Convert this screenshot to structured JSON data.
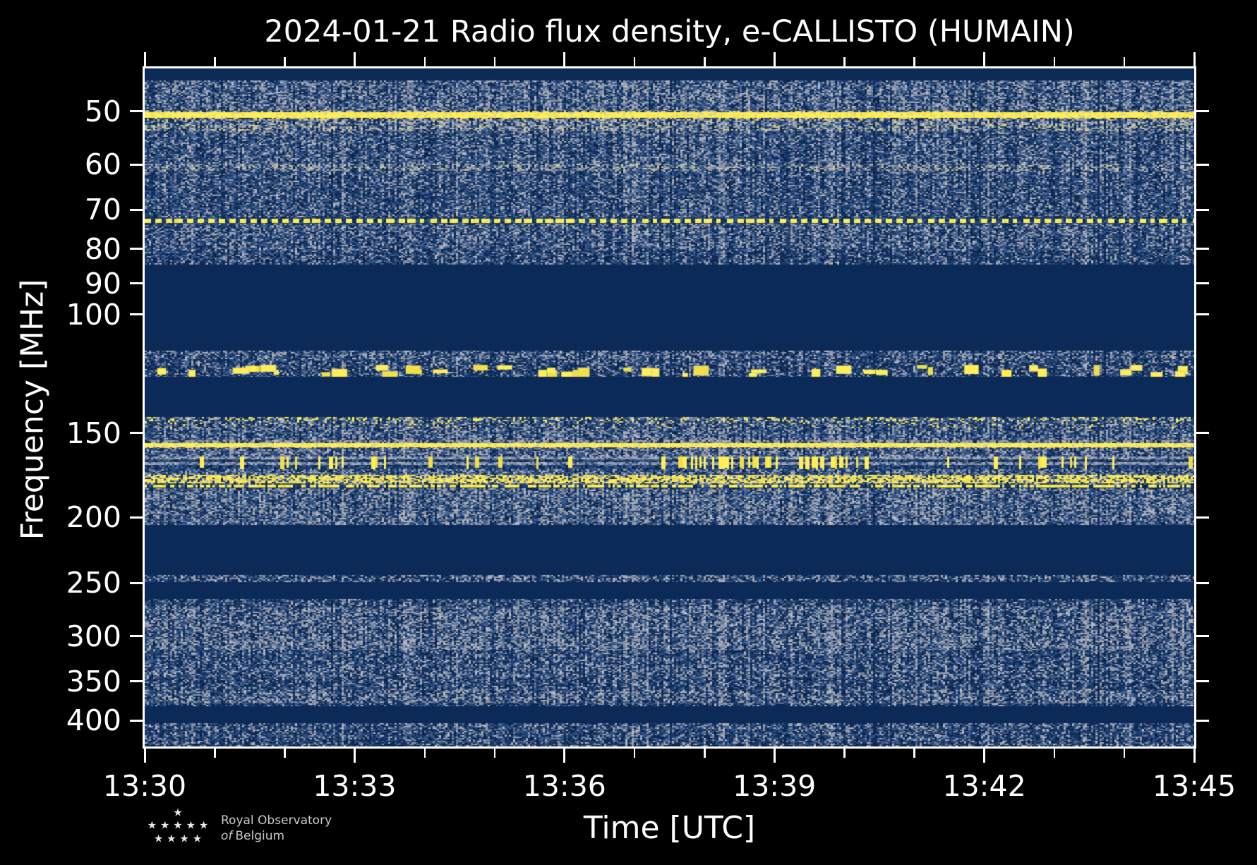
{
  "chart_data": {
    "type": "heatmap",
    "title": "2024-01-21 Radio flux density, e-CALLISTO (HUMAIN)",
    "xlabel": "Time [UTC]",
    "ylabel": "Frequency [MHz]",
    "x_range": [
      "13:30",
      "13:45"
    ],
    "x_major_ticks": [
      "13:30",
      "13:33",
      "13:36",
      "13:39",
      "13:42",
      "13:45"
    ],
    "x_minor_step_minutes": 1,
    "x_total_minutes": 15,
    "y_scale": "log",
    "y_axis_inverted_increasing_down": true,
    "freq_range_mhz": [
      43.2,
      437
    ],
    "y_tick_labels_mhz": [
      "50",
      "60",
      "70",
      "80",
      "90",
      "100",
      "150",
      "200",
      "250",
      "300",
      "350",
      "400"
    ],
    "grid": false,
    "legend": "none",
    "palette": {
      "figure_background": "#000000",
      "plot_background_navy": "#0c2a57",
      "frame": "#ffffff",
      "text": "#ffffff",
      "noise_blues": [
        "#23436e",
        "#2d4d7e",
        "#3a5a8c",
        "#47689a"
      ],
      "noise_darks": [
        "#0c2a57",
        "#123160",
        "#183968",
        "#0a2348"
      ],
      "noise_grays": [
        "#7d8498",
        "#8e94a4",
        "#9ca2b0",
        "#b4b8c3"
      ],
      "pale_yellow": "#d9cd8a",
      "yellow": "#f2df45",
      "bright_yellow": "#ffee55"
    },
    "bands": [
      {
        "f_lo": 45.0,
        "f_hi": 49.9,
        "kind": "noise",
        "density": 0.72,
        "gray": 0.45,
        "label": "broadband noise 45-50 MHz"
      },
      {
        "f_lo": 49.9,
        "f_hi": 51.4,
        "kind": "yellow_line",
        "label": "strong continuous RFI line ~50 MHz"
      },
      {
        "f_lo": 51.4,
        "f_hi": 53.5,
        "kind": "noise",
        "density": 0.78,
        "gray": 0.45,
        "pale": 0.15,
        "label": "bright fringe below 50 MHz line"
      },
      {
        "f_lo": 53.5,
        "f_hi": 59.8,
        "kind": "noise",
        "density": 0.66,
        "gray": 0.35,
        "label": "noise"
      },
      {
        "f_lo": 59.8,
        "f_hi": 61.2,
        "kind": "noise",
        "density": 0.78,
        "gray": 0.5,
        "pale": 0.1,
        "label": "enhanced row ~60 MHz"
      },
      {
        "f_lo": 61.2,
        "f_hi": 71.8,
        "kind": "noise",
        "density": 0.62,
        "gray": 0.33,
        "label": "noise"
      },
      {
        "f_lo": 71.8,
        "f_hi": 73.3,
        "kind": "dashed_line",
        "label": "dashed RFI line ~72.5 MHz"
      },
      {
        "f_lo": 73.3,
        "f_hi": 80.5,
        "kind": "noise",
        "density": 0.68,
        "gray": 0.4,
        "label": "noise"
      },
      {
        "f_lo": 80.5,
        "f_hi": 84.3,
        "kind": "noise",
        "density": 0.55,
        "gray": 0.32,
        "label": "noise fading into quiet zone 84-113 MHz"
      },
      {
        "f_lo": 113.2,
        "f_hi": 116.5,
        "kind": "noise",
        "density": 0.65,
        "gray": 0.45,
        "label": "noise"
      },
      {
        "f_lo": 116.5,
        "f_hi": 123.8,
        "kind": "blobs",
        "density": 0.5,
        "gray": 0.35,
        "label": "intermittent bright blobs ~117-124 MHz"
      },
      {
        "f_lo": 142.0,
        "f_hi": 147.5,
        "kind": "speckles",
        "density": 0.68,
        "gray": 0.4,
        "yellow_prob": 0.05,
        "label": "speckled noise ~142-148 MHz"
      },
      {
        "f_lo": 147.5,
        "f_hi": 153.6,
        "kind": "noise",
        "density": 0.72,
        "gray": 0.42,
        "label": "noise"
      },
      {
        "f_lo": 153.6,
        "f_hi": 155.2,
        "kind": "noise",
        "density": 0.82,
        "gray": 0.75,
        "label": "gray band above 156 MHz line"
      },
      {
        "f_lo": 155.2,
        "f_hi": 157.8,
        "kind": "yellow_line",
        "label": "strong continuous RFI line ~156 MHz"
      },
      {
        "f_lo": 157.8,
        "f_hi": 162.5,
        "kind": "noise",
        "density": 0.75,
        "gray": 0.45,
        "label": "noise"
      },
      {
        "f_lo": 162.5,
        "f_hi": 169.5,
        "kind": "bursts",
        "label": "vertical burst RFI ~163-170 MHz, clustered 13:38-13:41"
      },
      {
        "f_lo": 169.5,
        "f_hi": 172.8,
        "kind": "noise",
        "density": 0.7,
        "gray": 0.4,
        "label": "noise"
      },
      {
        "f_lo": 172.8,
        "f_hi": 177.8,
        "kind": "dense_yellow",
        "label": "dense bright RFI band ~173-178 MHz"
      },
      {
        "f_lo": 177.8,
        "f_hi": 179.0,
        "kind": "noise",
        "density": 0.68,
        "gray": 0.4,
        "label": "noise"
      },
      {
        "f_lo": 179.0,
        "f_hi": 181.0,
        "kind": "dotted_yellow",
        "label": "dotted RFI line ~180 MHz"
      },
      {
        "f_lo": 181.0,
        "f_hi": 205.0,
        "kind": "noise",
        "density": 0.75,
        "gray": 0.45,
        "label": "busy noise 181-205 MHz, quiet 205-244"
      },
      {
        "f_lo": 243.5,
        "f_hi": 249.5,
        "kind": "noise",
        "density": 0.55,
        "gray": 0.55,
        "label": "thin noisy row ~246 MHz"
      },
      {
        "f_lo": 264.0,
        "f_hi": 272.0,
        "kind": "noise",
        "density": 0.55,
        "gray": 0.35,
        "label": "noise"
      },
      {
        "f_lo": 272.0,
        "f_hi": 303.0,
        "kind": "noise",
        "density": 0.7,
        "gray": 0.5,
        "label": "noise"
      },
      {
        "f_lo": 303.0,
        "f_hi": 314.0,
        "kind": "noise",
        "density": 0.75,
        "gray": 0.55,
        "label": "denser gray row ~305 MHz"
      },
      {
        "f_lo": 314.0,
        "f_hi": 331.0,
        "kind": "noise",
        "density": 0.6,
        "gray": 0.35,
        "label": "noise"
      },
      {
        "f_lo": 331.0,
        "f_hi": 345.0,
        "kind": "noise",
        "density": 0.65,
        "gray": 0.45,
        "label": "noise"
      },
      {
        "f_lo": 345.0,
        "f_hi": 360.0,
        "kind": "noise",
        "density": 0.55,
        "gray": 0.35,
        "label": "noise"
      },
      {
        "f_lo": 360.0,
        "f_hi": 377.0,
        "kind": "noise",
        "density": 0.7,
        "gray": 0.5,
        "label": "brighter gray row ~360-377 MHz"
      },
      {
        "f_lo": 377.0,
        "f_hi": 381.0,
        "kind": "noise",
        "density": 0.45,
        "gray": 0.3,
        "label": "noise fading, quiet 381-404 MHz"
      },
      {
        "f_lo": 404.0,
        "f_hi": 412.0,
        "kind": "noise",
        "density": 0.6,
        "gray": 0.45,
        "label": "noise"
      },
      {
        "f_lo": 412.0,
        "f_hi": 437.0,
        "kind": "noise",
        "density": 0.55,
        "gray": 0.35,
        "label": "bottom noise band 412-437 MHz"
      }
    ]
  },
  "logo": {
    "line1": "Royal Observatory",
    "line2_prefix": "of",
    "line2": "Belgium",
    "star_rows": [
      1,
      5,
      4
    ]
  }
}
